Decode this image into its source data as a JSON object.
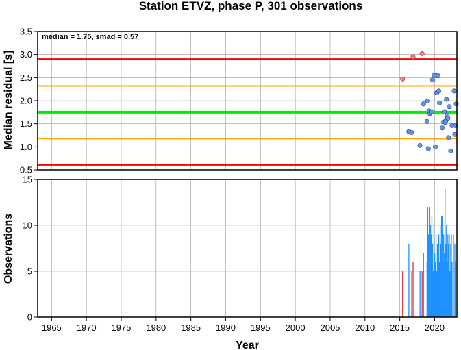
{
  "title": "Station ETVZ, phase P, 301 observations",
  "colors": {
    "red": "#ff0000",
    "orange": "#ffa500",
    "green": "#00ee00",
    "point_blue": "#6495ed",
    "point_red": "#f08080",
    "bar_blue": "#1e90ff",
    "bar_red": "#e03030"
  },
  "chart_data": [
    {
      "type": "scatter",
      "ylabel": "Median residual [s]",
      "annotation": "median = 1.75, smad = 0.57",
      "xlim": [
        1963,
        2023.2
      ],
      "ylim": [
        0.5,
        3.5
      ],
      "yticks": [
        0.5,
        1.0,
        1.5,
        2.0,
        2.5,
        3.0,
        3.5
      ],
      "ytick_labels": [
        "0.5",
        "1.0",
        "1.5",
        "2.0",
        "2.5",
        "3.0",
        "3.5"
      ],
      "hlines": [
        {
          "y": 2.9,
          "color": "red"
        },
        {
          "y": 2.32,
          "color": "orange"
        },
        {
          "y": 1.75,
          "color": "green"
        },
        {
          "y": 1.18,
          "color": "orange"
        },
        {
          "y": 0.61,
          "color": "red"
        }
      ],
      "series": [
        {
          "color": "point_red",
          "points": [
            [
              2015.4,
              2.47
            ],
            [
              2016.9,
              2.95
            ],
            [
              2018.2,
              3.02
            ]
          ]
        },
        {
          "color": "point_blue",
          "points": [
            [
              2016.3,
              1.33
            ],
            [
              2016.7,
              1.31
            ],
            [
              2017.9,
              1.03
            ],
            [
              2018.4,
              1.93
            ],
            [
              2019.0,
              1.99
            ],
            [
              2019.1,
              0.96
            ],
            [
              2019.2,
              1.78
            ],
            [
              2019.3,
              1.72
            ],
            [
              2019.5,
              1.75
            ],
            [
              2019.6,
              1.76
            ],
            [
              2019.7,
              2.45
            ],
            [
              2019.9,
              2.56
            ],
            [
              2020.1,
              1.0
            ],
            [
              2020.2,
              2.54
            ],
            [
              2020.3,
              2.17
            ],
            [
              2020.5,
              2.54
            ],
            [
              2020.6,
              2.21
            ],
            [
              2020.7,
              1.95
            ],
            [
              2021.1,
              1.41
            ],
            [
              2021.3,
              1.54
            ],
            [
              2021.4,
              1.76
            ],
            [
              2021.5,
              1.53
            ],
            [
              2021.6,
              1.56
            ],
            [
              2021.7,
              2.03
            ],
            [
              2021.8,
              1.67
            ],
            [
              2021.9,
              1.62
            ],
            [
              2022.0,
              1.2
            ],
            [
              2022.1,
              1.87
            ],
            [
              2022.3,
              0.91
            ],
            [
              2022.5,
              1.46
            ],
            [
              2022.8,
              2.21
            ],
            [
              2022.9,
              1.27
            ],
            [
              2023.0,
              1.46
            ],
            [
              2023.1,
              1.93
            ],
            [
              2018.9,
              1.55
            ]
          ]
        }
      ]
    },
    {
      "type": "bar",
      "xlabel": "Year",
      "ylabel": "Observations",
      "xlim": [
        1963,
        2023.2
      ],
      "ylim": [
        0,
        15
      ],
      "xticks": [
        1965,
        1970,
        1975,
        1980,
        1985,
        1990,
        1995,
        2000,
        2005,
        2010,
        2015,
        2020
      ],
      "xtick_labels": [
        "1965",
        "1970",
        "1975",
        "1980",
        "1985",
        "1990",
        "1995",
        "2000",
        "2005",
        "2010",
        "2015",
        "2020"
      ],
      "yticks": [
        0,
        5,
        10,
        15
      ],
      "ytick_labels": [
        "0",
        "5",
        "10",
        "15"
      ],
      "series": [
        {
          "color": "bar_red",
          "bars": [
            [
              2015.4,
              5
            ],
            [
              2016.9,
              6
            ],
            [
              2018.2,
              5
            ]
          ]
        },
        {
          "color": "bar_blue",
          "bars": [
            [
              2016.3,
              8
            ],
            [
              2016.7,
              5
            ],
            [
              2017.9,
              5
            ],
            [
              2018.4,
              7
            ],
            [
              2018.9,
              6
            ],
            [
              2019.0,
              12
            ],
            [
              2019.1,
              9
            ],
            [
              2019.2,
              7
            ],
            [
              2019.3,
              12
            ],
            [
              2019.4,
              10
            ],
            [
              2019.5,
              9
            ],
            [
              2019.6,
              11
            ],
            [
              2019.7,
              8
            ],
            [
              2019.8,
              5
            ],
            [
              2019.9,
              10
            ],
            [
              2020.0,
              7
            ],
            [
              2020.1,
              6
            ],
            [
              2020.2,
              9
            ],
            [
              2020.3,
              5
            ],
            [
              2020.4,
              8
            ],
            [
              2020.5,
              7
            ],
            [
              2020.6,
              9
            ],
            [
              2020.7,
              6
            ],
            [
              2020.8,
              10
            ],
            [
              2020.9,
              8
            ],
            [
              2021.0,
              11
            ],
            [
              2021.1,
              11
            ],
            [
              2021.2,
              6
            ],
            [
              2021.3,
              9
            ],
            [
              2021.4,
              7
            ],
            [
              2021.5,
              14
            ],
            [
              2021.6,
              8
            ],
            [
              2021.7,
              10
            ],
            [
              2021.8,
              6
            ],
            [
              2021.9,
              9
            ],
            [
              2022.0,
              8
            ],
            [
              2022.1,
              9
            ],
            [
              2022.2,
              5
            ],
            [
              2022.3,
              8
            ],
            [
              2022.4,
              9
            ],
            [
              2022.5,
              6
            ],
            [
              2022.7,
              9
            ],
            [
              2022.9,
              8
            ],
            [
              2023.0,
              6
            ]
          ]
        }
      ]
    }
  ]
}
